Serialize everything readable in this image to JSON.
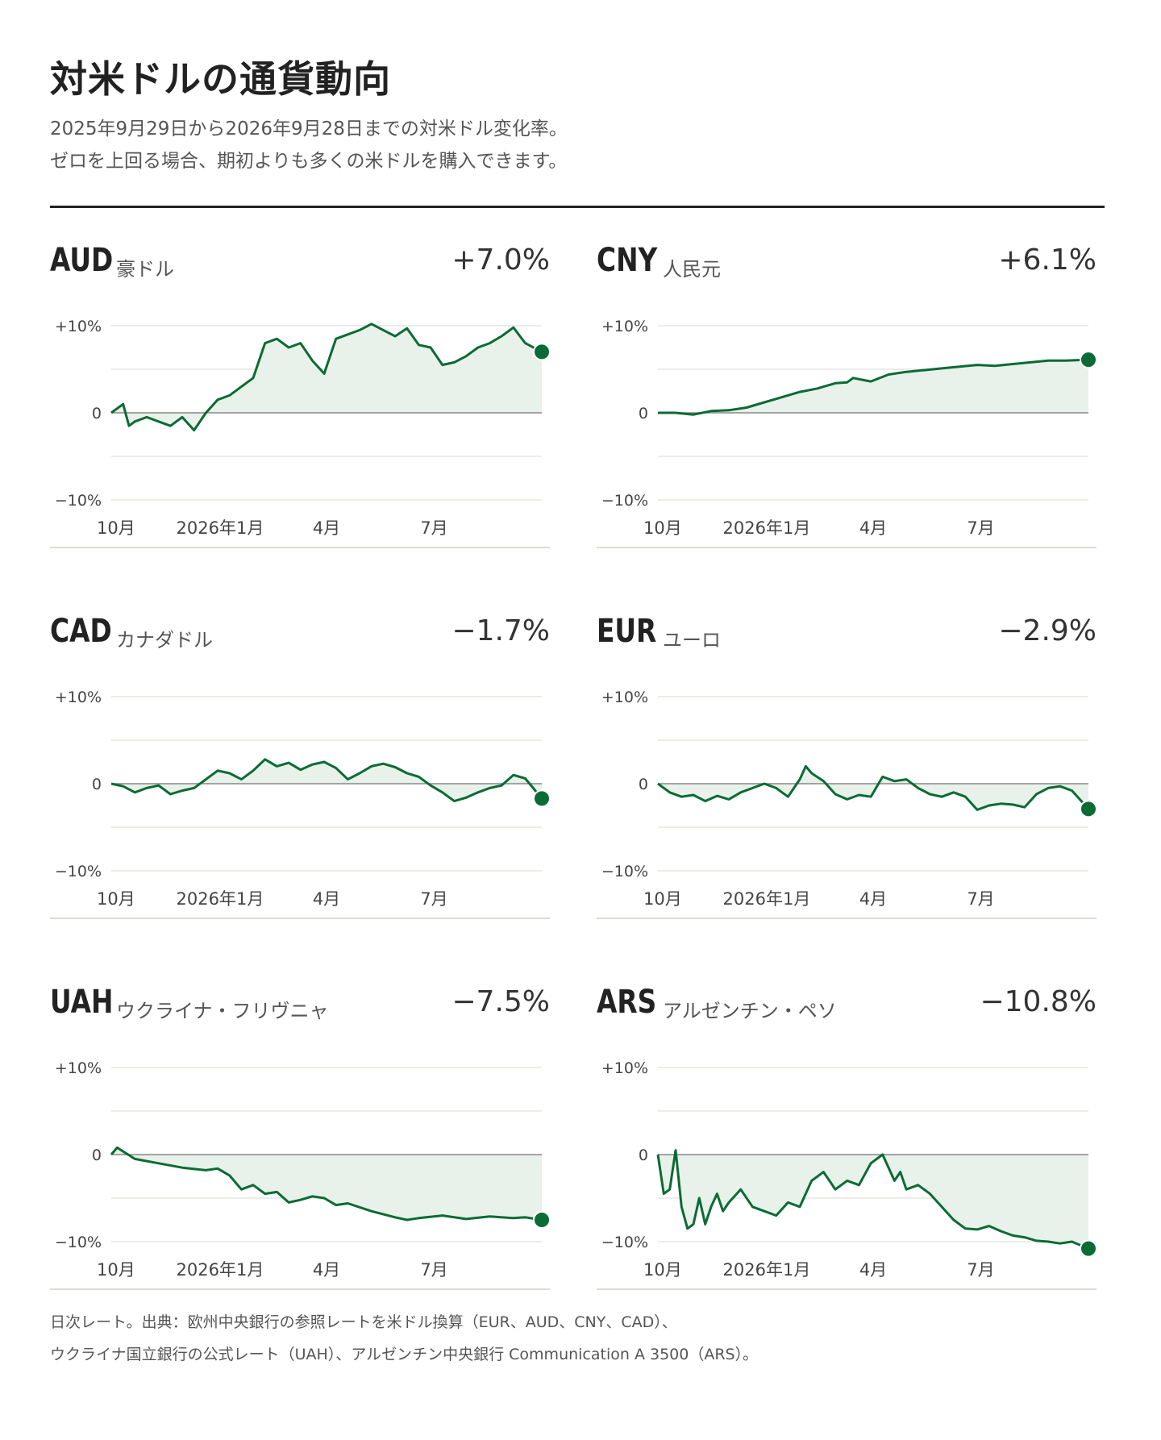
{
  "title": "対米ドルの通貨動向",
  "subtitle_lines": [
    "2025年9月29日から2026年9月28日までの対米ドル変化率。",
    "ゼロを上回る場合、期初よりも多くの米ドルを購入できます。"
  ],
  "footnote_lines": [
    "日次レート。出典：欧州中央銀行の参照レートを米ドル換算（EUR、AUD、CNY、CAD）、",
    "ウクライナ国立銀行の公式レート（UAH）、アルゼンチン中央銀行 Communication A 3500（ARS）。"
  ],
  "colors": {
    "line": "#0b6b34",
    "fill": "#e8f1ea",
    "grid": "#e5e5e0",
    "zero": "#888888",
    "label": "#444444"
  },
  "panels": [
    {
      "code": "AUD",
      "name": "豪ドル",
      "change": "+7.0%"
    },
    {
      "code": "CNY",
      "name": "人民元",
      "change": "+6.1%"
    },
    {
      "code": "CAD",
      "name": "カナダドル",
      "change": "−1.7%"
    },
    {
      "code": "EUR",
      "name": "ユーロ",
      "change": "−2.9%"
    },
    {
      "code": "UAH",
      "name": "ウクライナ・フリヴニャ",
      "change": "−7.5%"
    },
    {
      "code": "ARS",
      "name": "アルゼンチン・ペソ",
      "change": "−10.8%"
    }
  ],
  "chart_data": [
    {
      "type": "line",
      "title": "AUD",
      "ylim": [
        -10,
        10
      ],
      "yticks": [
        "+10%",
        "0",
        "−10%"
      ],
      "xticks": [
        "10月",
        "2026年1月",
        "4月",
        "7月"
      ],
      "x": [
        0,
        10,
        15,
        20,
        30,
        40,
        50,
        60,
        70,
        80,
        90,
        100,
        110,
        120,
        130,
        140,
        150,
        160,
        170,
        180,
        190,
        200,
        210,
        220,
        230,
        240,
        250,
        260,
        270,
        280,
        290,
        300,
        310,
        320,
        330,
        340,
        350,
        364
      ],
      "series": [
        {
          "values": [
            0,
            1,
            -1.5,
            -1,
            -0.5,
            -1,
            -1.5,
            -0.5,
            -2,
            0,
            1.5,
            2,
            3,
            4,
            8,
            8.5,
            7.5,
            8,
            6,
            4.5,
            8.5,
            9,
            9.5,
            10.2,
            9.5,
            8.8,
            9.7,
            7.8,
            7.5,
            5.5,
            5.8,
            6.5,
            7.5,
            8,
            8.8,
            9.8,
            8,
            7.0
          ]
        }
      ]
    },
    {
      "type": "line",
      "title": "CNY",
      "ylim": [
        -10,
        10
      ],
      "yticks": [
        "+10%",
        "0",
        "−10%"
      ],
      "xticks": [
        "10月",
        "2026年1月",
        "4月",
        "7月"
      ],
      "x": [
        0,
        15,
        30,
        45,
        60,
        75,
        90,
        105,
        120,
        135,
        150,
        160,
        165,
        180,
        195,
        210,
        225,
        240,
        255,
        270,
        285,
        300,
        315,
        330,
        345,
        364
      ],
      "series": [
        {
          "values": [
            0,
            0,
            -0.2,
            0.2,
            0.3,
            0.6,
            1.2,
            1.8,
            2.4,
            2.8,
            3.4,
            3.5,
            4,
            3.6,
            4.4,
            4.7,
            4.9,
            5.1,
            5.3,
            5.5,
            5.4,
            5.6,
            5.8,
            6.0,
            6.0,
            6.1
          ]
        }
      ]
    },
    {
      "type": "line",
      "title": "CAD",
      "ylim": [
        -10,
        10
      ],
      "yticks": [
        "+10%",
        "0",
        "−10%"
      ],
      "xticks": [
        "10月",
        "2026年1月",
        "4月",
        "7月"
      ],
      "x": [
        0,
        10,
        20,
        30,
        40,
        50,
        60,
        70,
        80,
        90,
        100,
        110,
        120,
        130,
        140,
        150,
        160,
        170,
        180,
        190,
        200,
        210,
        220,
        230,
        240,
        250,
        260,
        270,
        280,
        290,
        300,
        310,
        320,
        330,
        340,
        350,
        364
      ],
      "series": [
        {
          "values": [
            0,
            -0.3,
            -1,
            -0.5,
            -0.2,
            -1.2,
            -0.8,
            -0.5,
            0.5,
            1.5,
            1.2,
            0.5,
            1.5,
            2.8,
            2.0,
            2.4,
            1.6,
            2.2,
            2.5,
            1.8,
            0.5,
            1.2,
            2.0,
            2.3,
            1.9,
            1.2,
            0.8,
            -0.2,
            -1.0,
            -2.0,
            -1.6,
            -1.0,
            -0.5,
            -0.2,
            1.0,
            0.6,
            -1.7
          ]
        }
      ]
    },
    {
      "type": "line",
      "title": "EUR",
      "ylim": [
        -10,
        10
      ],
      "yticks": [
        "+10%",
        "0",
        "−10%"
      ],
      "xticks": [
        "10月",
        "2026年1月",
        "4月",
        "7月"
      ],
      "x": [
        0,
        10,
        20,
        30,
        40,
        50,
        60,
        70,
        80,
        90,
        100,
        110,
        120,
        125,
        130,
        140,
        150,
        160,
        170,
        180,
        190,
        200,
        210,
        220,
        230,
        240,
        250,
        260,
        270,
        280,
        290,
        300,
        310,
        320,
        330,
        340,
        350,
        364
      ],
      "series": [
        {
          "values": [
            0,
            -1,
            -1.5,
            -1.3,
            -2,
            -1.4,
            -1.8,
            -1,
            -0.5,
            0,
            -0.5,
            -1.5,
            0.5,
            2,
            1.2,
            0.3,
            -1.2,
            -1.8,
            -1.3,
            -1.5,
            0.8,
            0.3,
            0.5,
            -0.5,
            -1.2,
            -1.5,
            -1.0,
            -1.5,
            -3.0,
            -2.5,
            -2.3,
            -2.4,
            -2.7,
            -1.2,
            -0.5,
            -0.3,
            -0.8,
            -2.9
          ]
        }
      ]
    },
    {
      "type": "line",
      "title": "UAH",
      "ylim": [
        -10,
        10
      ],
      "yticks": [
        "+10%",
        "0",
        "−10%"
      ],
      "xticks": [
        "10月",
        "2026年1月",
        "4月",
        "7月"
      ],
      "x": [
        0,
        5,
        20,
        40,
        60,
        80,
        90,
        100,
        110,
        120,
        130,
        140,
        150,
        160,
        170,
        180,
        190,
        200,
        220,
        240,
        250,
        260,
        280,
        300,
        320,
        340,
        350,
        364
      ],
      "series": [
        {
          "values": [
            0,
            0.8,
            -0.5,
            -1.0,
            -1.5,
            -1.8,
            -1.6,
            -2.4,
            -4.0,
            -3.5,
            -4.5,
            -4.3,
            -5.5,
            -5.2,
            -4.8,
            -5.0,
            -5.8,
            -5.6,
            -6.5,
            -7.2,
            -7.5,
            -7.3,
            -7.0,
            -7.4,
            -7.1,
            -7.3,
            -7.2,
            -7.5
          ]
        }
      ]
    },
    {
      "type": "line",
      "title": "ARS",
      "ylim": [
        -10,
        10
      ],
      "yticks": [
        "+10%",
        "0",
        "−10%"
      ],
      "xticks": [
        "10月",
        "2026年1月",
        "4月",
        "7月"
      ],
      "x": [
        0,
        5,
        10,
        15,
        20,
        25,
        30,
        35,
        40,
        45,
        50,
        55,
        60,
        70,
        80,
        90,
        100,
        110,
        120,
        130,
        140,
        150,
        160,
        170,
        180,
        190,
        200,
        205,
        210,
        220,
        230,
        240,
        250,
        260,
        270,
        280,
        290,
        300,
        310,
        320,
        330,
        340,
        350,
        364
      ],
      "series": [
        {
          "values": [
            0,
            -4.5,
            -4.0,
            0.5,
            -6.0,
            -8.5,
            -8.0,
            -5.0,
            -8.0,
            -6.0,
            -4.5,
            -6.5,
            -5.5,
            -4.0,
            -6.0,
            -6.5,
            -7.0,
            -5.5,
            -6.0,
            -3.0,
            -2.0,
            -4.0,
            -3.0,
            -3.5,
            -1.0,
            0,
            -3.0,
            -2.0,
            -4.0,
            -3.5,
            -4.5,
            -6.0,
            -7.5,
            -8.5,
            -8.6,
            -8.2,
            -8.8,
            -9.3,
            -9.5,
            -9.9,
            -10.0,
            -10.2,
            -10.0,
            -10.8
          ]
        }
      ]
    }
  ]
}
